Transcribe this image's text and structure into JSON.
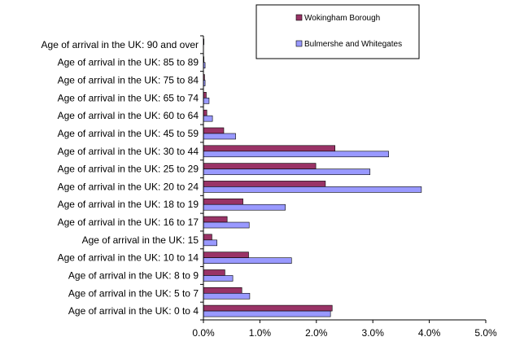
{
  "chart_data": {
    "type": "bar",
    "orientation": "horizontal",
    "categories": [
      "Age of arrival in the UK: 0 to 4",
      "Age of arrival in the UK: 5 to 7",
      "Age of arrival in the UK: 8 to 9",
      "Age of arrival in the UK: 10 to 14",
      "Age of arrival in the UK: 15",
      "Age of arrival in the UK: 16 to 17",
      "Age of arrival in the UK: 18 to 19",
      "Age of arrival in the UK: 20 to 24",
      "Age of arrival in the UK: 25 to 29",
      "Age of arrival in the UK: 30 to 44",
      "Age of arrival in the UK: 45 to 59",
      "Age of arrival in the UK: 60 to 64",
      "Age of arrival in the UK: 65 to 74",
      "Age of arrival in the UK: 75 to 84",
      "Age of arrival in the UK: 85 to 89",
      "Age of arrival in the UK: 90 and over"
    ],
    "series": [
      {
        "name": "Wokingham Borough",
        "color": "#993366",
        "values": [
          2.28,
          0.68,
          0.38,
          0.8,
          0.15,
          0.42,
          0.7,
          2.16,
          1.99,
          2.33,
          0.36,
          0.06,
          0.05,
          0.02,
          0.01,
          0.01
        ]
      },
      {
        "name": "Bulmershe and Whitegates",
        "color": "#9999ff",
        "values": [
          2.25,
          0.82,
          0.52,
          1.56,
          0.24,
          0.81,
          1.45,
          3.86,
          2.95,
          3.28,
          0.57,
          0.16,
          0.1,
          0.03,
          0.03,
          0.0
        ]
      }
    ],
    "xlim": [
      0,
      5
    ],
    "xticks": [
      "0.0%",
      "1.0%",
      "2.0%",
      "3.0%",
      "4.0%",
      "5.0%"
    ],
    "unit": "%",
    "grid": false,
    "legend": "top-right"
  }
}
